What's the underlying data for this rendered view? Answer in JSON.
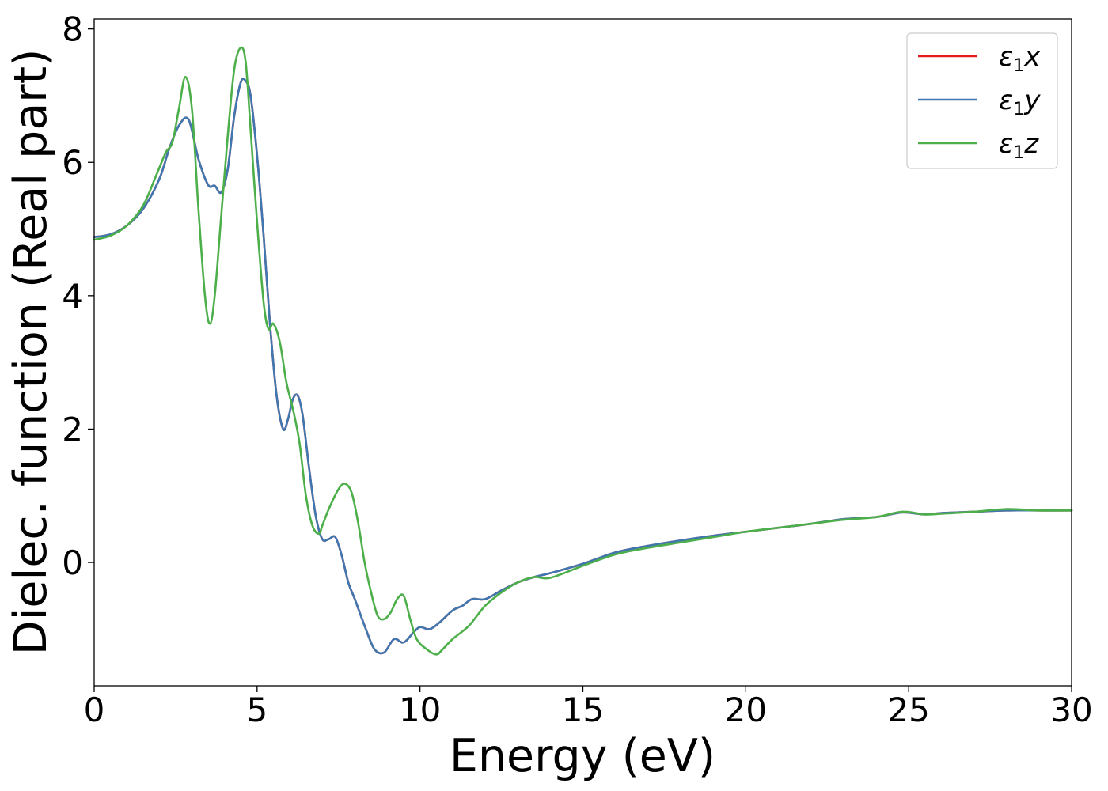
{
  "chart_data": {
    "type": "line",
    "xlabel": "Energy (eV)",
    "ylabel": "Dielec. function (Real part)",
    "xlim": [
      0,
      30
    ],
    "ylim": [
      -1.85,
      8.15
    ],
    "xticks": [
      0,
      5,
      10,
      15,
      20,
      25,
      30
    ],
    "yticks": [
      0,
      2,
      4,
      6,
      8
    ],
    "grid": false,
    "legend_position": "top-right",
    "series": [
      {
        "name": "ε1x",
        "legend_main": "ε",
        "legend_sub": "1",
        "legend_var": "x",
        "color": "#e41a1c",
        "x": [
          0,
          0.5,
          1.0,
          1.5,
          2.0,
          2.3,
          2.6,
          2.9,
          3.2,
          3.5,
          3.7,
          3.9,
          4.1,
          4.3,
          4.5,
          4.65,
          4.8,
          5.0,
          5.2,
          5.4,
          5.6,
          5.8,
          5.95,
          6.1,
          6.25,
          6.4,
          6.6,
          6.8,
          7.0,
          7.2,
          7.4,
          7.6,
          7.8,
          8.0,
          8.3,
          8.6,
          8.9,
          9.2,
          9.5,
          9.8,
          10.0,
          10.3,
          10.6,
          11.0,
          11.3,
          11.6,
          12.0,
          12.5,
          13.0,
          13.5,
          14.0,
          15.0,
          16.0,
          17.0,
          18.0,
          19.0,
          20.0,
          21.0,
          22.0,
          23.0,
          24.0,
          24.8,
          25.5,
          26.0,
          27.0,
          28.0,
          29.0,
          30.0
        ],
        "y": [
          4.88,
          4.92,
          5.05,
          5.3,
          5.75,
          6.2,
          6.55,
          6.64,
          6.05,
          5.66,
          5.65,
          5.55,
          5.9,
          6.7,
          7.2,
          7.22,
          7.0,
          6.1,
          4.9,
          3.55,
          2.5,
          2.0,
          2.15,
          2.45,
          2.5,
          2.2,
          1.4,
          0.7,
          0.35,
          0.35,
          0.38,
          0.1,
          -0.3,
          -0.55,
          -0.95,
          -1.3,
          -1.35,
          -1.15,
          -1.2,
          -1.05,
          -0.97,
          -1.0,
          -0.9,
          -0.72,
          -0.65,
          -0.55,
          -0.55,
          -0.42,
          -0.3,
          -0.22,
          -0.16,
          -0.02,
          0.15,
          0.25,
          0.33,
          0.4,
          0.46,
          0.52,
          0.58,
          0.65,
          0.68,
          0.75,
          0.72,
          0.74,
          0.76,
          0.78,
          0.78,
          0.78
        ]
      },
      {
        "name": "ε1y",
        "legend_main": "ε",
        "legend_sub": "1",
        "legend_var": "y",
        "color": "#3f77b0",
        "x": [
          0,
          0.5,
          1.0,
          1.5,
          2.0,
          2.3,
          2.6,
          2.9,
          3.2,
          3.5,
          3.7,
          3.9,
          4.1,
          4.3,
          4.5,
          4.65,
          4.8,
          5.0,
          5.2,
          5.4,
          5.6,
          5.8,
          5.95,
          6.1,
          6.25,
          6.4,
          6.6,
          6.8,
          7.0,
          7.2,
          7.4,
          7.6,
          7.8,
          8.0,
          8.3,
          8.6,
          8.9,
          9.2,
          9.5,
          9.8,
          10.0,
          10.3,
          10.6,
          11.0,
          11.3,
          11.6,
          12.0,
          12.5,
          13.0,
          13.5,
          14.0,
          15.0,
          16.0,
          17.0,
          18.0,
          19.0,
          20.0,
          21.0,
          22.0,
          23.0,
          24.0,
          24.8,
          25.5,
          26.0,
          27.0,
          28.0,
          29.0,
          30.0
        ],
        "y": [
          4.88,
          4.92,
          5.05,
          5.3,
          5.75,
          6.2,
          6.55,
          6.64,
          6.05,
          5.66,
          5.65,
          5.55,
          5.9,
          6.7,
          7.2,
          7.22,
          7.0,
          6.1,
          4.9,
          3.55,
          2.5,
          2.0,
          2.15,
          2.45,
          2.5,
          2.2,
          1.4,
          0.7,
          0.35,
          0.35,
          0.38,
          0.1,
          -0.3,
          -0.55,
          -0.95,
          -1.3,
          -1.35,
          -1.15,
          -1.2,
          -1.05,
          -0.97,
          -1.0,
          -0.9,
          -0.72,
          -0.65,
          -0.55,
          -0.55,
          -0.42,
          -0.3,
          -0.22,
          -0.16,
          -0.02,
          0.15,
          0.25,
          0.33,
          0.4,
          0.46,
          0.52,
          0.58,
          0.65,
          0.68,
          0.75,
          0.72,
          0.74,
          0.76,
          0.78,
          0.78,
          0.78
        ]
      },
      {
        "name": "ε1z",
        "legend_main": "ε",
        "legend_sub": "1",
        "legend_var": "z",
        "color": "#4daf4a",
        "x": [
          0,
          0.5,
          1.0,
          1.5,
          1.9,
          2.2,
          2.4,
          2.6,
          2.8,
          3.0,
          3.2,
          3.4,
          3.55,
          3.7,
          3.9,
          4.1,
          4.3,
          4.5,
          4.65,
          4.8,
          5.0,
          5.2,
          5.35,
          5.5,
          5.7,
          5.9,
          6.1,
          6.3,
          6.5,
          6.7,
          6.9,
          7.0,
          7.2,
          7.5,
          7.7,
          7.9,
          8.1,
          8.3,
          8.5,
          8.7,
          8.9,
          9.1,
          9.3,
          9.5,
          9.7,
          9.9,
          10.2,
          10.5,
          10.7,
          11.0,
          11.5,
          12.0,
          12.5,
          13.0,
          13.5,
          14.0,
          15.0,
          16.0,
          17.0,
          18.0,
          19.0,
          20.0,
          21.0,
          22.0,
          23.0,
          24.0,
          24.8,
          25.5,
          26.0,
          27.0,
          28.0,
          29.0,
          30.0
        ],
        "y": [
          4.84,
          4.9,
          5.05,
          5.35,
          5.8,
          6.15,
          6.3,
          6.8,
          7.28,
          6.8,
          5.3,
          4.0,
          3.58,
          4.0,
          5.2,
          6.4,
          7.4,
          7.72,
          7.5,
          6.5,
          5.1,
          3.9,
          3.5,
          3.58,
          3.3,
          2.7,
          2.3,
          1.8,
          1.0,
          0.55,
          0.43,
          0.55,
          0.8,
          1.1,
          1.18,
          1.05,
          0.6,
          0.0,
          -0.45,
          -0.8,
          -0.85,
          -0.75,
          -0.55,
          -0.5,
          -0.85,
          -1.15,
          -1.3,
          -1.38,
          -1.3,
          -1.15,
          -0.95,
          -0.65,
          -0.45,
          -0.3,
          -0.22,
          -0.23,
          -0.05,
          0.12,
          0.22,
          0.3,
          0.38,
          0.46,
          0.52,
          0.58,
          0.64,
          0.68,
          0.76,
          0.72,
          0.73,
          0.76,
          0.8,
          0.78,
          0.78
        ]
      }
    ]
  }
}
